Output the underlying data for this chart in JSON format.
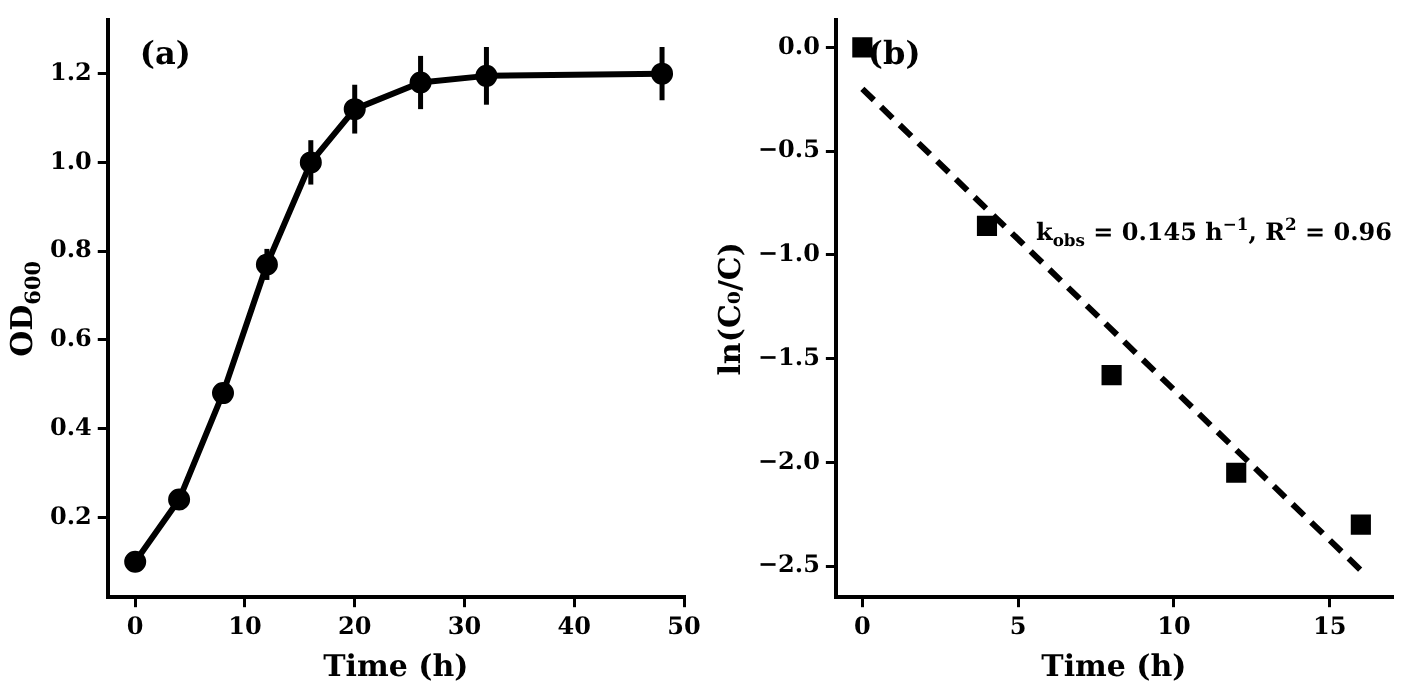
{
  "chart_data": [
    {
      "type": "line",
      "title": "(a)",
      "xlabel": "Time (h)",
      "ylabel": "OD$_{600}$",
      "x": [
        0,
        4,
        8,
        12,
        16,
        20,
        26,
        32,
        48
      ],
      "series": [
        {
          "color": "#000000",
          "marker": "circle",
          "line_style": "solid",
          "values": [
            0.1,
            0.24,
            0.48,
            0.77,
            1.0,
            1.12,
            1.18,
            1.195,
            1.2
          ],
          "errors": [
            0.01,
            0.01,
            0.02,
            0.035,
            0.05,
            0.055,
            0.06,
            0.065,
            0.06
          ]
        }
      ],
      "xlim": [
        -2.5,
        50
      ],
      "ylim": [
        0.02,
        1.32
      ],
      "xticks": [
        0,
        10,
        20,
        30,
        40,
        50
      ],
      "yticks": [
        0.2,
        0.4,
        0.6,
        0.8,
        {
          "value": 1.0,
          "label": "1.0"
        },
        1.2
      ],
      "grid": false,
      "legend": false
    },
    {
      "type": "scatter",
      "title": "(b)",
      "xlabel": "Time (h)",
      "ylabel": "ln(C₀/C)",
      "x": [
        0,
        4,
        8,
        12,
        16
      ],
      "series": [
        {
          "color": "#000000",
          "marker": "square",
          "values": [
            0,
            -0.86,
            -1.58,
            -2.05,
            -2.3
          ]
        },
        {
          "type": "line",
          "color": "#000000",
          "marker": "none",
          "line_style": "dashed",
          "x": [
            0,
            16
          ],
          "values": [
            -0.2,
            -2.52
          ]
        }
      ],
      "annotations": [
        "k$_{obs}$ = 0.145 h$^{−1}$, R$^{2}$ = 0.96"
      ],
      "xlim": [
        -0.85,
        17
      ],
      "ylim": [
        -2.65,
        0.13
      ],
      "xticks": [
        0,
        5,
        10,
        15
      ],
      "yticks": [
        {
          "value": 0,
          "label": "0.0"
        },
        {
          "value": -0.5,
          "label": "−0.5"
        },
        {
          "value": -1,
          "label": "−1.0"
        },
        {
          "value": -1.5,
          "label": "−1.5"
        },
        {
          "value": -2,
          "label": "−2.0"
        },
        {
          "value": -2.5,
          "label": "−2.5"
        }
      ],
      "grid": false,
      "legend": false
    }
  ]
}
